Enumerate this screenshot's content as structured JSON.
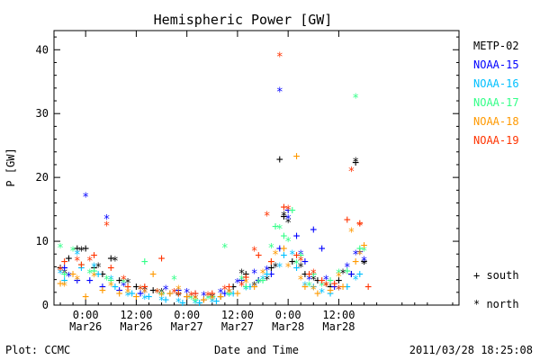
{
  "chart_data": {
    "type": "scatter",
    "title": "Hemispheric Power [GW]",
    "ylabel": "P [GW]",
    "xlabel": "Date and Time",
    "ylim": [
      0,
      43
    ],
    "xlim": [
      -7.5,
      88.5
    ],
    "yticks": [
      0,
      10,
      20,
      30,
      40
    ],
    "xticks": [
      {
        "value": 0,
        "time": "0:00",
        "date": "Mar26"
      },
      {
        "value": 12,
        "time": "12:00",
        "date": "Mar26"
      },
      {
        "value": 24,
        "time": "0:00",
        "date": "Mar27"
      },
      {
        "value": 36,
        "time": "12:00",
        "date": "Mar27"
      },
      {
        "value": 48,
        "time": "0:00",
        "date": "Mar28"
      },
      {
        "value": 60,
        "time": "12:00",
        "date": "Mar28"
      }
    ],
    "x_units": "hours from 0:00 Mar26",
    "legend_placement": "right",
    "marker_legend": [
      {
        "symbol": "+",
        "label": "south"
      },
      {
        "symbol": "*",
        "label": "north"
      }
    ],
    "series": [
      {
        "name": "METP-02",
        "color": "#000000",
        "south": [
          [
            -6,
            6
          ],
          [
            -4,
            7.5
          ],
          [
            -2,
            9
          ],
          [
            0,
            9
          ],
          [
            2,
            6
          ],
          [
            4,
            5
          ],
          [
            6,
            7.5
          ],
          [
            8,
            4
          ],
          [
            12,
            3
          ],
          [
            16,
            2.5
          ],
          [
            20,
            2
          ],
          [
            24,
            1.5
          ],
          [
            28,
            1
          ],
          [
            32,
            1.5
          ],
          [
            35,
            3
          ],
          [
            38,
            5
          ],
          [
            41,
            4
          ],
          [
            44,
            6
          ],
          [
            46,
            23
          ],
          [
            47,
            14
          ],
          [
            49,
            7
          ],
          [
            52,
            5
          ],
          [
            55,
            4
          ],
          [
            58,
            3
          ],
          [
            60,
            4
          ],
          [
            63,
            5
          ],
          [
            64,
            22.5
          ],
          [
            66,
            7
          ]
        ],
        "north": [
          [
            -5,
            5
          ],
          [
            -1,
            8.5
          ],
          [
            3,
            6
          ],
          [
            7,
            7
          ],
          [
            10,
            3.5
          ],
          [
            14,
            2.5
          ],
          [
            18,
            2
          ],
          [
            22,
            1.5
          ],
          [
            26,
            1
          ],
          [
            30,
            1.2
          ],
          [
            34,
            2
          ],
          [
            37,
            5
          ],
          [
            40,
            3
          ],
          [
            43,
            4
          ],
          [
            45,
            6
          ],
          [
            47,
            14
          ],
          [
            48,
            13
          ],
          [
            51,
            6
          ],
          [
            54,
            4
          ],
          [
            57,
            3
          ],
          [
            61,
            5
          ],
          [
            64,
            22.5
          ],
          [
            66,
            6.5
          ]
        ]
      },
      {
        "name": "NOAA-15",
        "color": "#0000ff",
        "south": [
          [
            -5,
            6
          ],
          [
            -2,
            4
          ],
          [
            1,
            4
          ],
          [
            4,
            3
          ],
          [
            8,
            2.5
          ],
          [
            13,
            2
          ],
          [
            18,
            2
          ],
          [
            22,
            2.5
          ],
          [
            26,
            2
          ],
          [
            30,
            1.5
          ],
          [
            33,
            2
          ],
          [
            37,
            4
          ],
          [
            41,
            4
          ],
          [
            44,
            5
          ],
          [
            46,
            9
          ],
          [
            48,
            15
          ],
          [
            50,
            11
          ],
          [
            52,
            7
          ],
          [
            54,
            12
          ],
          [
            56,
            9
          ],
          [
            59,
            3
          ],
          [
            63,
            5
          ],
          [
            65,
            8.5
          ]
        ],
        "north": [
          [
            -4,
            4.5
          ],
          [
            0,
            17
          ],
          [
            5,
            13.5
          ],
          [
            9,
            3
          ],
          [
            14,
            2
          ],
          [
            19,
            2.5
          ],
          [
            24,
            2
          ],
          [
            28,
            1.5
          ],
          [
            32,
            2
          ],
          [
            36,
            3.5
          ],
          [
            40,
            5
          ],
          [
            43,
            5.5
          ],
          [
            46,
            33.5
          ],
          [
            48,
            13.5
          ],
          [
            51,
            8
          ],
          [
            53,
            4
          ],
          [
            57,
            4
          ],
          [
            62,
            6
          ],
          [
            64,
            8
          ],
          [
            66,
            7
          ]
        ]
      },
      {
        "name": "NOAA-16",
        "color": "#00c0ff",
        "south": [
          [
            -5,
            4
          ],
          [
            -1,
            6
          ],
          [
            3,
            5
          ],
          [
            7,
            3
          ],
          [
            11,
            2
          ],
          [
            15,
            1.5
          ],
          [
            19,
            1
          ],
          [
            23,
            0.5
          ],
          [
            27,
            0.5
          ],
          [
            31,
            0.8
          ],
          [
            35,
            2
          ],
          [
            39,
            3
          ],
          [
            43,
            5
          ],
          [
            47,
            8
          ],
          [
            50,
            6
          ],
          [
            54,
            3
          ],
          [
            58,
            2
          ],
          [
            62,
            3
          ],
          [
            65,
            5
          ]
        ],
        "north": [
          [
            -6,
            5
          ],
          [
            -2,
            8
          ],
          [
            2,
            6
          ],
          [
            6,
            4
          ],
          [
            10,
            1.5
          ],
          [
            14,
            1
          ],
          [
            18,
            0.8
          ],
          [
            22,
            0.5
          ],
          [
            26,
            0.3
          ],
          [
            30,
            0.5
          ],
          [
            34,
            1.5
          ],
          [
            38,
            2.5
          ],
          [
            42,
            4
          ],
          [
            46,
            6
          ],
          [
            49,
            8
          ],
          [
            52,
            3
          ],
          [
            56,
            2
          ],
          [
            60,
            2.5
          ],
          [
            64,
            4
          ]
        ]
      },
      {
        "name": "NOAA-17",
        "color": "#33ff88",
        "south": [
          [
            -5,
            5
          ],
          [
            -1,
            6.5
          ],
          [
            2,
            5.5
          ],
          [
            6,
            4
          ],
          [
            10,
            3
          ],
          [
            14,
            7
          ],
          [
            18,
            2
          ],
          [
            22,
            2
          ],
          [
            26,
            1
          ],
          [
            30,
            1.5
          ],
          [
            34,
            2
          ],
          [
            38,
            3
          ],
          [
            42,
            4
          ],
          [
            45,
            12.5
          ],
          [
            47,
            11
          ],
          [
            49,
            15
          ],
          [
            51,
            8
          ],
          [
            54,
            5
          ],
          [
            58,
            4
          ],
          [
            62,
            5.5
          ],
          [
            65,
            9
          ]
        ],
        "north": [
          [
            -6,
            9
          ],
          [
            -3,
            8.5
          ],
          [
            1,
            5
          ],
          [
            5,
            4
          ],
          [
            9,
            3.5
          ],
          [
            13,
            2.5
          ],
          [
            17,
            2
          ],
          [
            21,
            4
          ],
          [
            25,
            1
          ],
          [
            29,
            1
          ],
          [
            33,
            9
          ],
          [
            37,
            4
          ],
          [
            41,
            3.5
          ],
          [
            44,
            9
          ],
          [
            46,
            12
          ],
          [
            48,
            10
          ],
          [
            50,
            6.5
          ],
          [
            53,
            3
          ],
          [
            56,
            3
          ],
          [
            60,
            5
          ],
          [
            64,
            32.5
          ],
          [
            66,
            8.5
          ]
        ]
      },
      {
        "name": "NOAA-18",
        "color": "#ff9900",
        "south": [
          [
            -6,
            3.5
          ],
          [
            -3,
            5
          ],
          [
            0,
            1.5
          ],
          [
            4,
            2.5
          ],
          [
            8,
            2
          ],
          [
            12,
            1.5
          ],
          [
            16,
            5
          ],
          [
            20,
            2
          ],
          [
            24,
            1.5
          ],
          [
            28,
            1
          ],
          [
            32,
            1.5
          ],
          [
            36,
            2
          ],
          [
            40,
            3
          ],
          [
            44,
            7
          ],
          [
            47,
            9
          ],
          [
            50,
            23.5
          ],
          [
            52,
            3
          ],
          [
            55,
            2
          ],
          [
            58,
            2.5
          ],
          [
            61,
            3
          ],
          [
            64,
            7
          ],
          [
            66,
            9.5
          ]
        ],
        "north": [
          [
            -5,
            3
          ],
          [
            -2,
            4
          ],
          [
            2,
            4.5
          ],
          [
            6,
            3
          ],
          [
            10,
            2
          ],
          [
            14,
            2
          ],
          [
            18,
            1.5
          ],
          [
            22,
            2.5
          ],
          [
            26,
            1
          ],
          [
            30,
            1
          ],
          [
            34,
            2
          ],
          [
            38,
            3.5
          ],
          [
            42,
            5
          ],
          [
            45,
            8
          ],
          [
            48,
            6
          ],
          [
            51,
            4
          ],
          [
            54,
            2.5
          ],
          [
            57,
            3
          ],
          [
            60,
            4.5
          ],
          [
            63,
            11.5
          ],
          [
            65,
            8
          ]
        ]
      },
      {
        "name": "NOAA-19",
        "color": "#ff3300",
        "south": [
          [
            -5,
            7
          ],
          [
            -1,
            6.5
          ],
          [
            2,
            8
          ],
          [
            6,
            6
          ],
          [
            10,
            3
          ],
          [
            14,
            3
          ],
          [
            18,
            7.5
          ],
          [
            22,
            2
          ],
          [
            26,
            2
          ],
          [
            30,
            2
          ],
          [
            34,
            3
          ],
          [
            38,
            4.5
          ],
          [
            41,
            8
          ],
          [
            44,
            7
          ],
          [
            47,
            15.5
          ],
          [
            50,
            8
          ],
          [
            53,
            5
          ],
          [
            56,
            4
          ],
          [
            59,
            3.5
          ],
          [
            62,
            13.5
          ],
          [
            65,
            13
          ],
          [
            67,
            3
          ]
        ],
        "north": [
          [
            -6,
            5.5
          ],
          [
            -2,
            7
          ],
          [
            1,
            7
          ],
          [
            5,
            12.5
          ],
          [
            9,
            4
          ],
          [
            13,
            2.5
          ],
          [
            17,
            2
          ],
          [
            21,
            2
          ],
          [
            25,
            1.5
          ],
          [
            29,
            1.5
          ],
          [
            33,
            2.5
          ],
          [
            37,
            3
          ],
          [
            40,
            8.5
          ],
          [
            43,
            14
          ],
          [
            46,
            39
          ],
          [
            48,
            15
          ],
          [
            51,
            7
          ],
          [
            54,
            5
          ],
          [
            57,
            3
          ],
          [
            60,
            2.5
          ],
          [
            63,
            21
          ],
          [
            65,
            12.5
          ]
        ]
      }
    ]
  },
  "footer": {
    "plot_by": "Plot: CCMC",
    "timestamp": "2011/03/28  18:25:08"
  }
}
